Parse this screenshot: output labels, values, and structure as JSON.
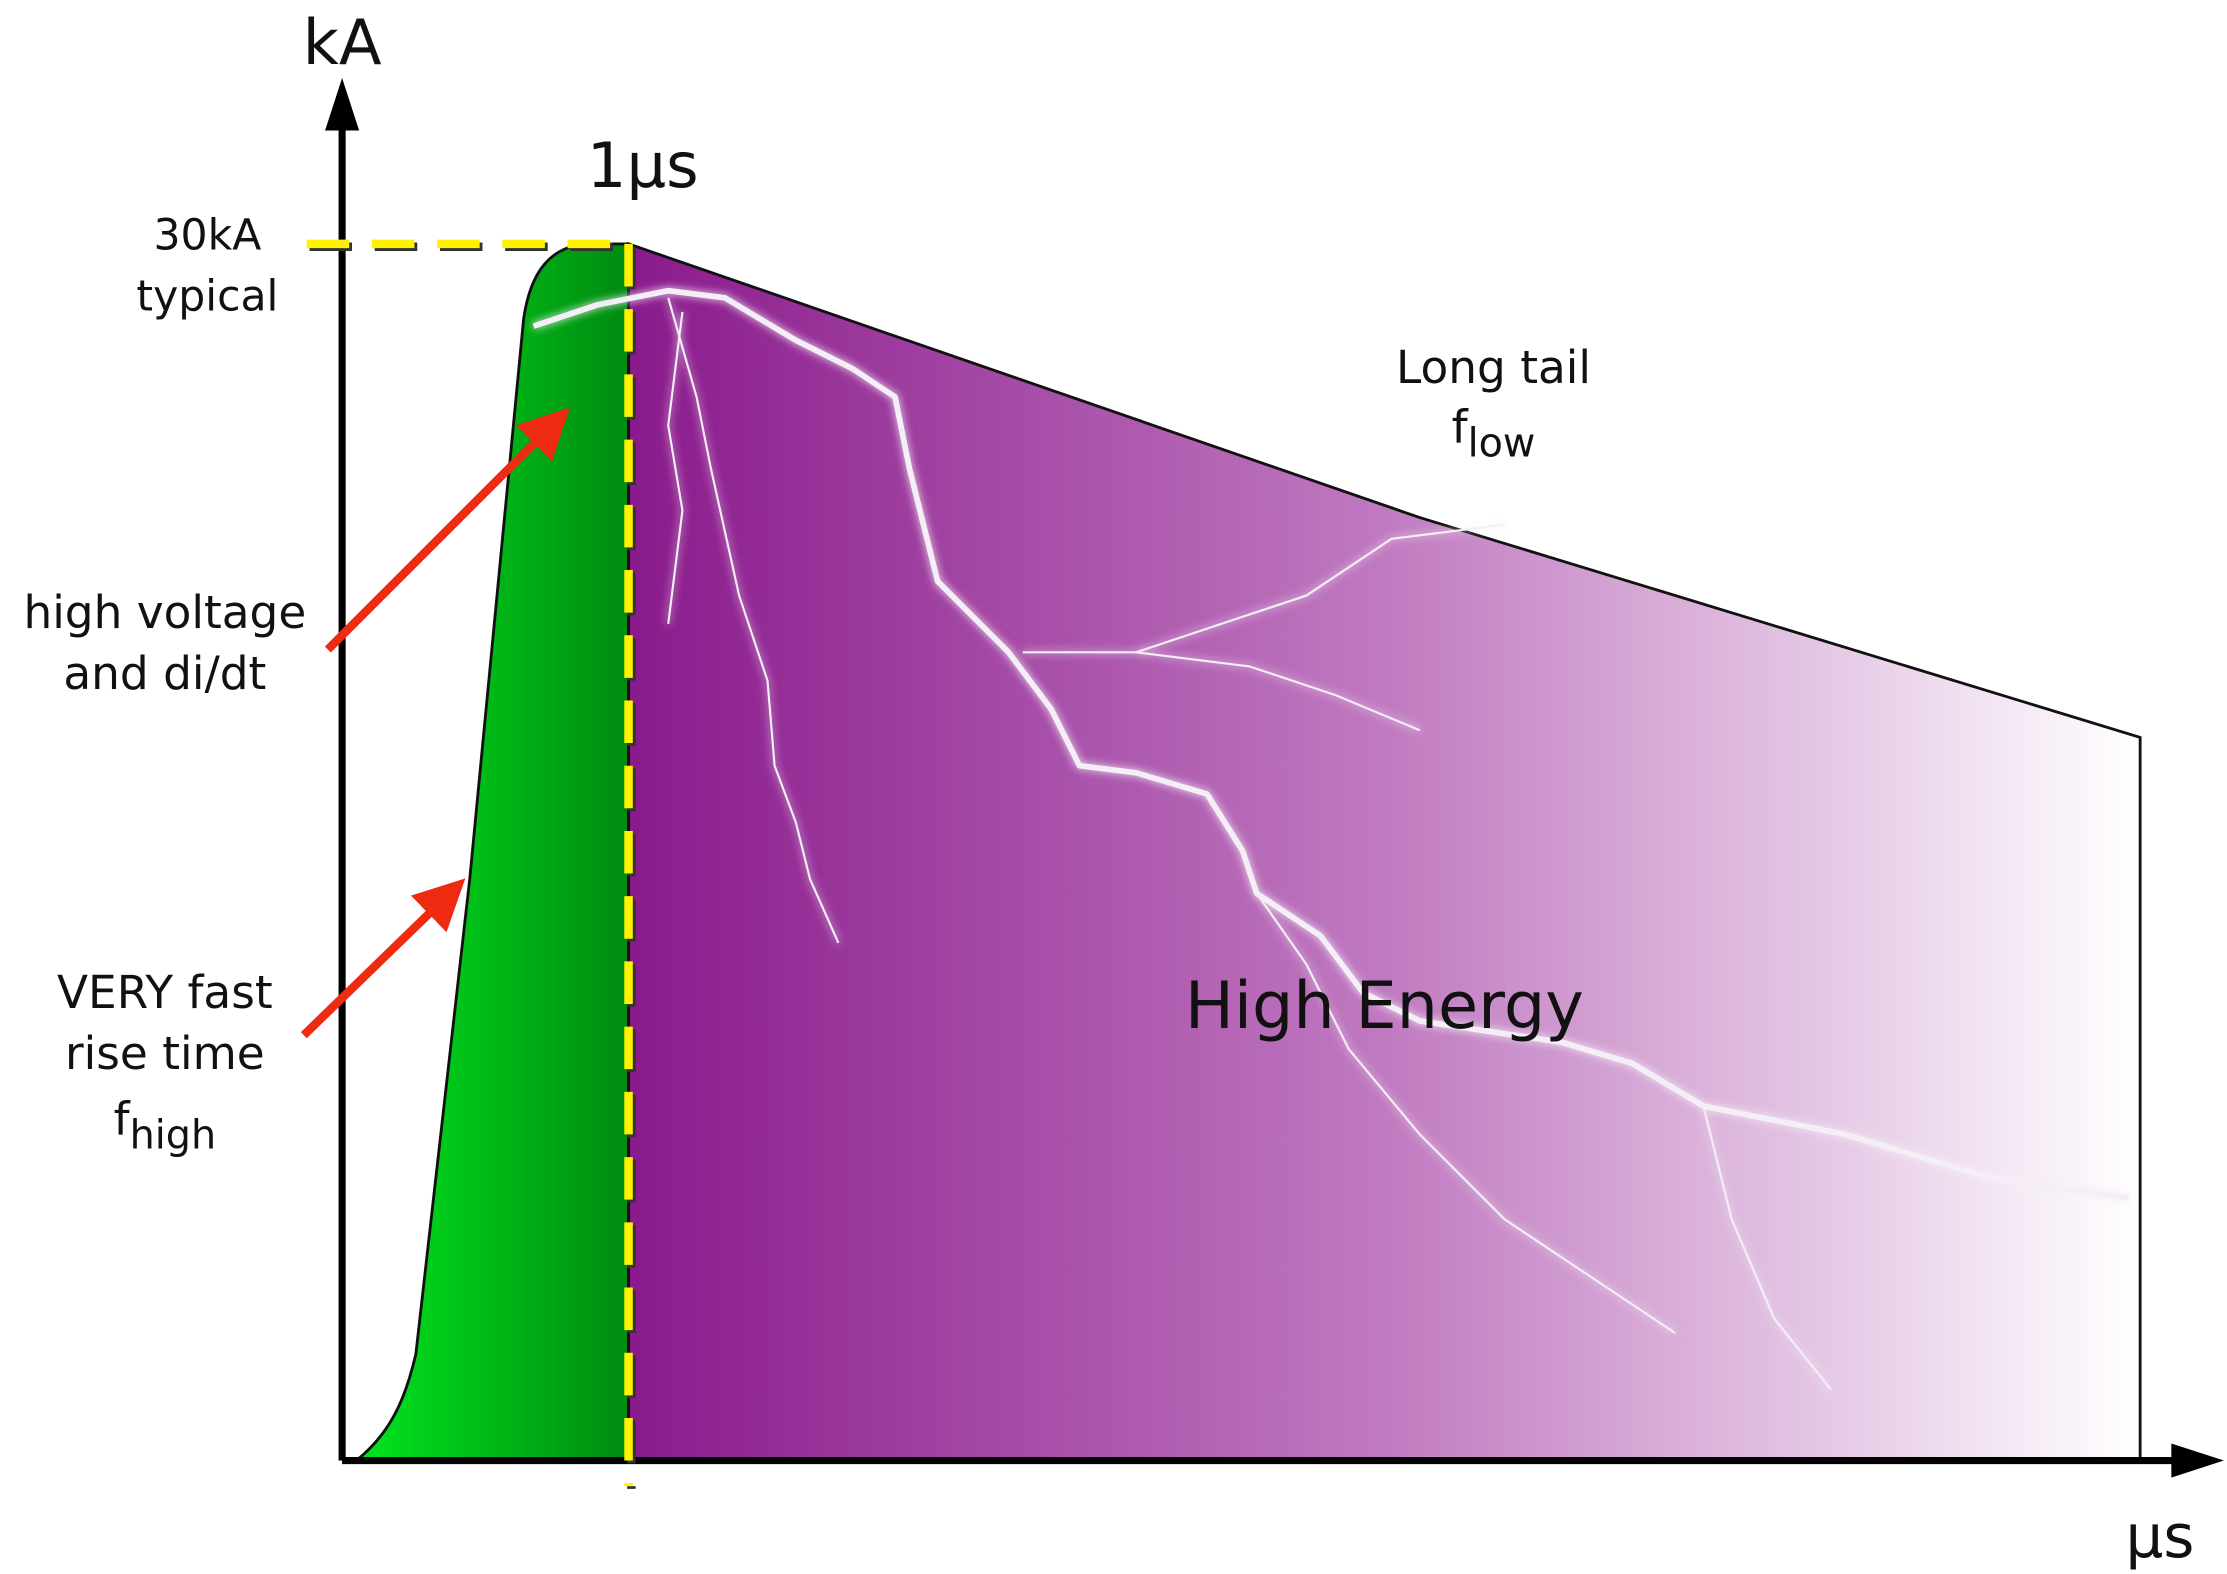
{
  "axes": {
    "y_label": "kA",
    "x_label": "µs"
  },
  "markers": {
    "time": "1µs",
    "peak": [
      "30kA",
      "typical"
    ]
  },
  "annotations": {
    "tail": {
      "lines": [
        "Long tail"
      ],
      "freq": {
        "main": "f",
        "sub": "low"
      }
    },
    "voltage": {
      "lines": [
        "high voltage",
        "and di/dt"
      ]
    },
    "rise": {
      "lines": [
        "VERY fast",
        "rise time"
      ],
      "freq": {
        "main": "f",
        "sub": "high"
      }
    },
    "energy": "High Energy"
  }
}
